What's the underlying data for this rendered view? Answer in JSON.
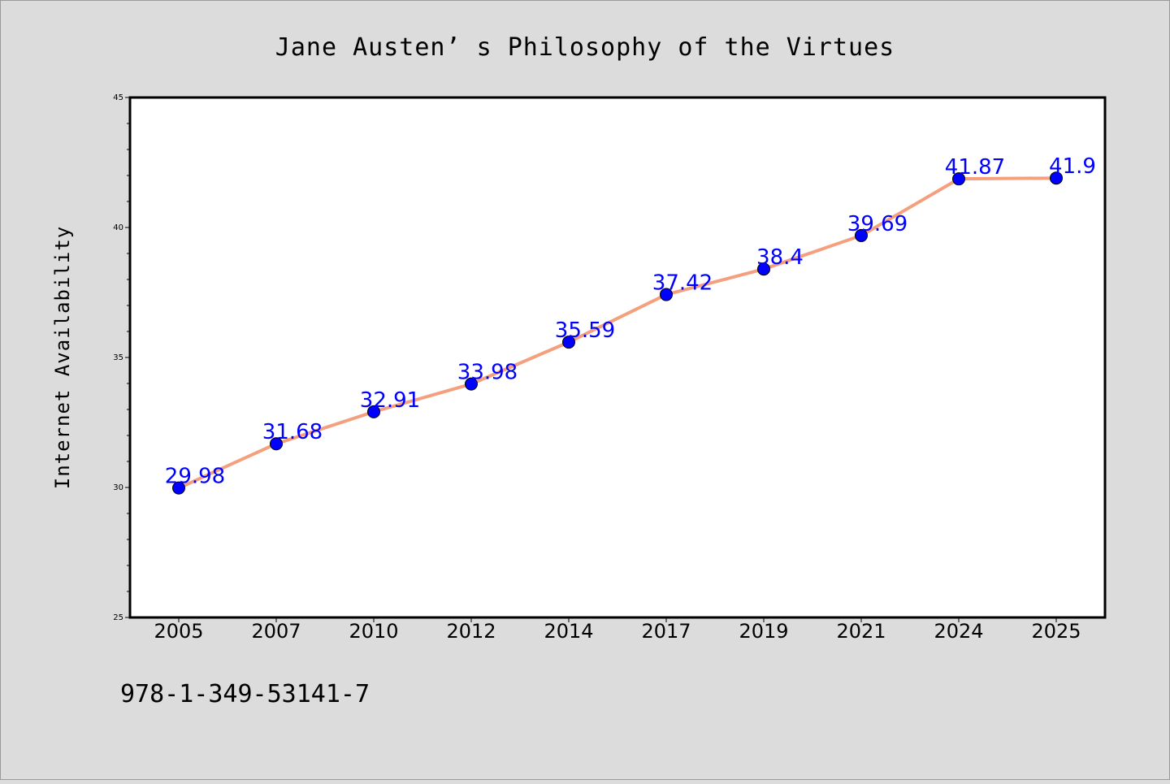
{
  "chart_data": {
    "type": "line",
    "title": "Jane Austen’ s Philosophy of the Virtues",
    "xlabel": "",
    "ylabel": "Internet Availability",
    "categories": [
      "2005",
      "2007",
      "2010",
      "2012",
      "2014",
      "2017",
      "2019",
      "2021",
      "2024",
      "2025"
    ],
    "series": [
      {
        "values": [
          29.98,
          31.68,
          32.91,
          33.98,
          35.59,
          37.42,
          38.4,
          39.69,
          41.87,
          41.9
        ],
        "data_labels": [
          "29.98",
          "31.68",
          "32.91",
          "33.98",
          "35.59",
          "37.42",
          "38.4",
          "39.69",
          "41.87",
          "41.9"
        ],
        "line_color": "#f4a07e",
        "marker_color": "#0000ff"
      }
    ],
    "ylim": [
      25,
      45
    ],
    "yticks": [
      "25",
      "30",
      "35",
      "40",
      "45"
    ],
    "grid": false,
    "legend": "none"
  },
  "footer_note": "978-1-349-53141-7",
  "colors": {
    "background": "#dcdcdc",
    "plot_background": "#ffffff",
    "data_label": "#0000ff"
  }
}
